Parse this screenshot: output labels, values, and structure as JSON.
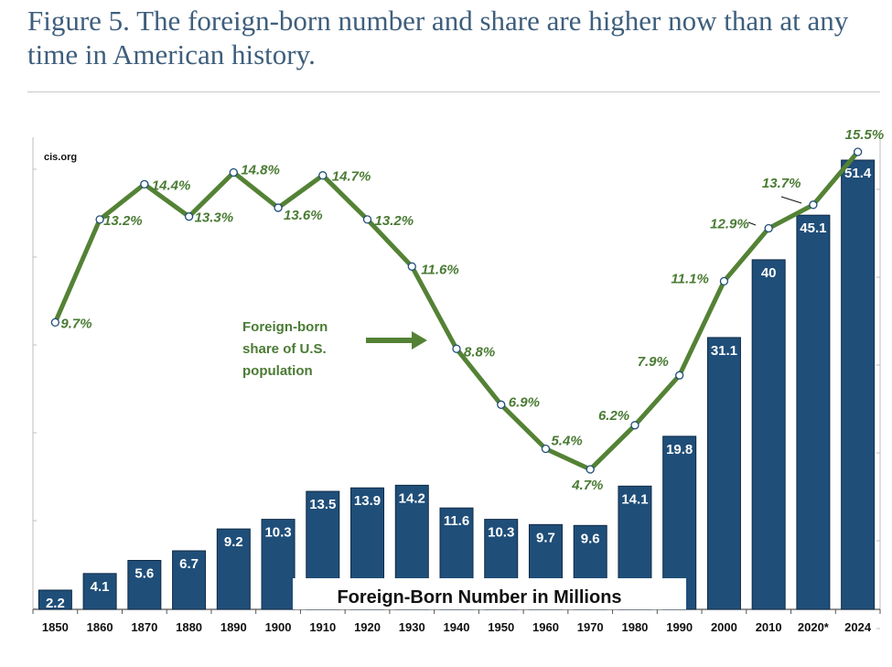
{
  "figure": {
    "title": "Figure 5. The foreign-born number and share are higher now than at any time in American history."
  },
  "chart_data": {
    "type": "bar",
    "source": "cis.org",
    "categories": [
      "1850",
      "1860",
      "1870",
      "1880",
      "1890",
      "1900",
      "1910",
      "1920",
      "1930",
      "1940",
      "1950",
      "1960",
      "1970",
      "1980",
      "1990",
      "2000",
      "2010",
      "2020*",
      "2024"
    ],
    "series": [
      {
        "name": "Foreign-Born Number in Millions",
        "type": "bar",
        "values": [
          2.2,
          4.1,
          5.6,
          6.7,
          9.2,
          10.3,
          13.5,
          13.9,
          14.2,
          11.6,
          10.3,
          9.7,
          9.6,
          14.1,
          19.8,
          31.1,
          40,
          45.1,
          51.4
        ],
        "labels": [
          "2.2",
          "4.1",
          "5.6",
          "6.7",
          "9.2",
          "10.3",
          "13.5",
          "13.9",
          "14.2",
          "11.6",
          "10.3",
          "9.7",
          "9.6",
          "14.1",
          "19.8",
          "31.1",
          "40",
          "45.1",
          "51.4"
        ],
        "color": "#1f4e79"
      },
      {
        "name": "Foreign-born share of U.S. population",
        "type": "line",
        "values": [
          9.7,
          13.2,
          14.4,
          13.3,
          14.8,
          13.6,
          14.7,
          13.2,
          11.6,
          8.8,
          6.9,
          5.4,
          4.7,
          6.2,
          7.9,
          11.1,
          12.9,
          13.7,
          15.5
        ],
        "labels": [
          "9.7%",
          "13.2%",
          "14.4%",
          "13.3%",
          "14.8%",
          "13.6%",
          "14.7%",
          "13.2%",
          "11.6%",
          "8.8%",
          "6.9%",
          "5.4%",
          "4.7%",
          "6.2%",
          "7.9%",
          "11.1%",
          "12.9%",
          "13.7%",
          "15.5%"
        ],
        "color": "#548235"
      }
    ],
    "bar_ylim": [
      0,
      55
    ],
    "line_ylim": [
      4,
      16
    ],
    "annotation": {
      "line1": "Foreign-born",
      "line2": "share of U.S.",
      "line3": "population"
    },
    "bar_caption": "Foreign-Born Number in Millions",
    "grid": false,
    "legend": "none"
  }
}
